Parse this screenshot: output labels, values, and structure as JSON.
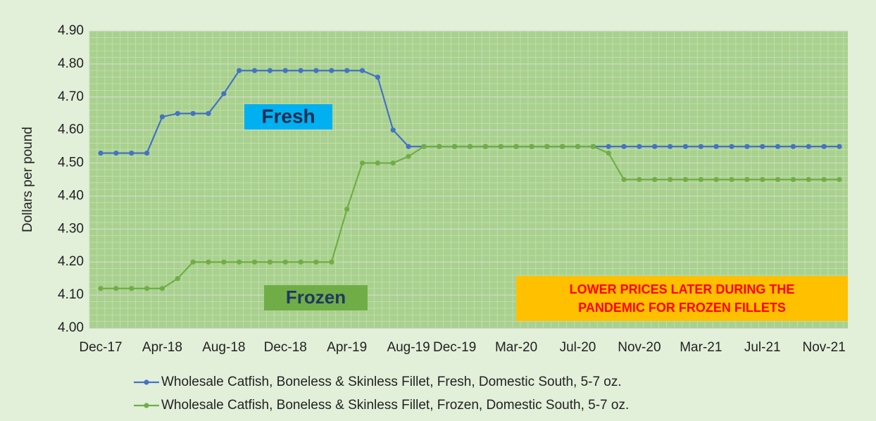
{
  "chart_data": {
    "type": "line",
    "ylabel": "Dollars per pound",
    "categories": [
      "Dec-17",
      null,
      null,
      null,
      "Apr-18",
      null,
      null,
      null,
      "Aug-18",
      null,
      null,
      null,
      "Dec-18",
      null,
      null,
      null,
      "Apr-19",
      null,
      null,
      null,
      "Aug-19",
      null,
      null,
      "Dec-19",
      null,
      null,
      null,
      "Mar-20",
      null,
      null,
      null,
      "Jul-20",
      null,
      null,
      null,
      "Nov-20",
      null,
      null,
      null,
      "Mar-21",
      null,
      null,
      null,
      "Jul-21",
      null,
      null,
      null,
      "Nov-21",
      null
    ],
    "series": [
      {
        "name": "Wholesale Catfish, Boneless & Skinless Fillet, Fresh, Domestic South, 5-7 oz.",
        "color": "#4472c4",
        "values": [
          4.53,
          4.53,
          4.53,
          4.53,
          4.64,
          4.65,
          4.65,
          4.65,
          4.71,
          4.78,
          4.78,
          4.78,
          4.78,
          4.78,
          4.78,
          4.78,
          4.78,
          4.78,
          4.76,
          4.6,
          4.55,
          4.55,
          4.55,
          4.55,
          4.55,
          4.55,
          4.55,
          4.55,
          4.55,
          4.55,
          4.55,
          4.55,
          4.55,
          4.55,
          4.55,
          4.55,
          4.55,
          4.55,
          4.55,
          4.55,
          4.55,
          4.55,
          4.55,
          4.55,
          4.55,
          4.55,
          4.55,
          4.55,
          4.55
        ]
      },
      {
        "name": "Wholesale Catfish, Boneless & Skinless Fillet, Frozen, Domestic South, 5-7 oz.",
        "color": "#70ad47",
        "values": [
          4.12,
          4.12,
          4.12,
          4.12,
          4.12,
          4.15,
          4.2,
          4.2,
          4.2,
          4.2,
          4.2,
          4.2,
          4.2,
          4.2,
          4.2,
          4.2,
          4.36,
          4.5,
          4.5,
          4.5,
          4.52,
          4.55,
          4.55,
          4.55,
          4.55,
          4.55,
          4.55,
          4.55,
          4.55,
          4.55,
          4.55,
          4.55,
          4.55,
          4.53,
          4.45,
          4.45,
          4.45,
          4.45,
          4.45,
          4.45,
          4.45,
          4.45,
          4.45,
          4.45,
          4.45,
          4.45,
          4.45,
          4.45,
          4.45
        ]
      }
    ],
    "ylim": [
      4.0,
      4.9
    ],
    "yticks": [
      {
        "value": 4.0,
        "label": "4.00"
      },
      {
        "value": 4.1,
        "label": "4.10"
      },
      {
        "value": 4.2,
        "label": "4.20"
      },
      {
        "value": 4.3,
        "label": "4.30"
      },
      {
        "value": 4.4,
        "label": "4.40"
      },
      {
        "value": 4.5,
        "label": "4.50"
      },
      {
        "value": 4.6,
        "label": "4.60"
      },
      {
        "value": 4.7,
        "label": "4.70"
      },
      {
        "value": 4.8,
        "label": "4.80"
      },
      {
        "value": 4.9,
        "label": "4.90"
      }
    ],
    "grid": true,
    "annotations": [
      {
        "lines": [
          "Fresh"
        ],
        "color": "#00b0f0",
        "text_color": "#1f2d4f"
      },
      {
        "lines": [
          "Frozen"
        ],
        "color": "#70ad47",
        "text_color": "#1f3864"
      },
      {
        "lines": [
          "LOWER PRICES LATER DURING THE",
          "PANDEMIC FOR FROZEN FILLETS"
        ],
        "color": "#ffc000",
        "text_color": "#ff0000"
      }
    ]
  }
}
